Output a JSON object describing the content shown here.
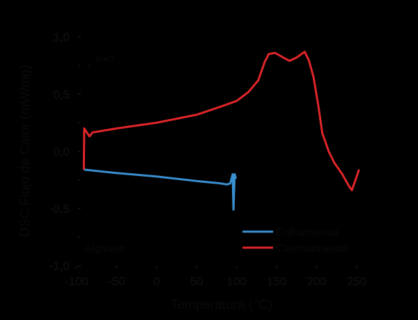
{
  "chart_data": {
    "type": "line",
    "title": "",
    "xlabel": "Temperatura (°C)",
    "ylabel": "DSC Flujo de Calor (mW/mg)",
    "xlim": [
      -100,
      250
    ],
    "ylim": [
      -1.0,
      1.0
    ],
    "x_ticks": [
      "-100",
      "-50",
      "0",
      "50",
      "100",
      "150",
      "200",
      "250"
    ],
    "y_ticks": [
      "1,0",
      "0,5",
      "0,0",
      "-0,5",
      "-1,0"
    ],
    "grid": false,
    "legend_position": "lower right",
    "annotations": [
      {
        "text": "exo",
        "note": "arrow pointing down, upper left"
      },
      {
        "text": "Alginato",
        "note": "lower left sample label"
      }
    ],
    "series": [
      {
        "name": "Enfriamiento",
        "color": "#3a8fd0",
        "x": [
          -91,
          -91,
          -50,
          0,
          50,
          80,
          88,
          92,
          95,
          96,
          97.5,
          99
        ],
        "y": [
          -0.16,
          -0.16,
          -0.19,
          -0.22,
          -0.26,
          -0.28,
          -0.29,
          -0.28,
          -0.2,
          -0.51,
          -0.2,
          -0.24
        ]
      },
      {
        "name": "Calentamiento",
        "color": "#e0262a",
        "x": [
          -91,
          -90.5,
          -84,
          -80,
          -50,
          0,
          50,
          80,
          100,
          115,
          127,
          135,
          140,
          148,
          158,
          166,
          175,
          185,
          190,
          196,
          202,
          207,
          215,
          222,
          232,
          240,
          244,
          248,
          253
        ],
        "y": [
          -0.16,
          0.2,
          0.13,
          0.165,
          0.2,
          0.25,
          0.32,
          0.39,
          0.44,
          0.52,
          0.62,
          0.78,
          0.85,
          0.86,
          0.82,
          0.79,
          0.82,
          0.87,
          0.8,
          0.65,
          0.4,
          0.16,
          0.0,
          -0.1,
          -0.2,
          -0.3,
          -0.34,
          -0.26,
          -0.16
        ]
      }
    ]
  },
  "legend": {
    "items": [
      {
        "label": "Enfriamiento",
        "color": "#3a8fd0"
      },
      {
        "label": "Calentamiento",
        "color": "#e0262a"
      }
    ]
  },
  "labels": {
    "xlabel": "Temperatura (°C)",
    "ylabel": "DSC Flujo de Calor (mW/mg)",
    "exo": "exo",
    "sample": "Alginato"
  }
}
